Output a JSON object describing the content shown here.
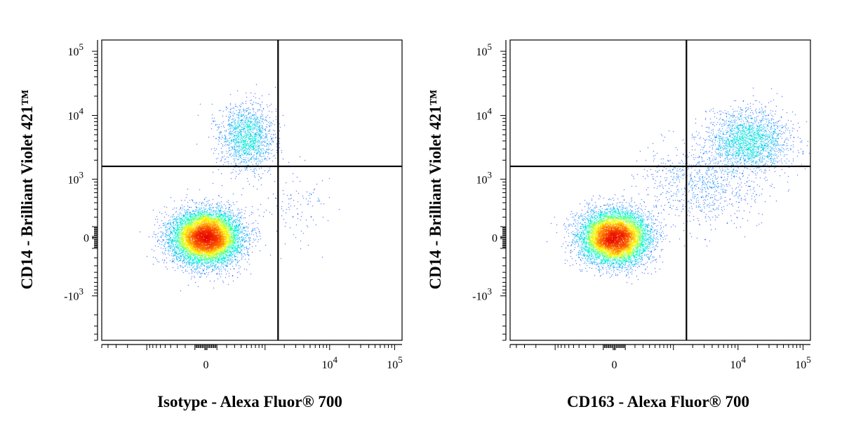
{
  "chart_data": [
    {
      "type": "scatter",
      "xlabel": "Isotype - Alexa Fluor® 700",
      "ylabel": "CD14 - Brilliant Violet 421™",
      "x_scale": "biexponential",
      "y_scale": "biexponential",
      "x_ticks": [
        {
          "value": 0,
          "base": "0",
          "exp": ""
        },
        {
          "value": 10000,
          "base": "10",
          "exp": "4"
        },
        {
          "value": 100000,
          "base": "10",
          "exp": "5"
        }
      ],
      "y_ticks": [
        {
          "value": 100000,
          "base": "10",
          "exp": "5"
        },
        {
          "value": 10000,
          "base": "10",
          "exp": "4"
        },
        {
          "value": 1000,
          "base": "10",
          "exp": "3"
        },
        {
          "value": 0,
          "base": "0",
          "exp": ""
        },
        {
          "value": -1000,
          "base": "-10",
          "exp": "3"
        }
      ],
      "gate": {
        "x": 1600,
        "y": 1600
      },
      "colors": [
        "#0000ff",
        "#00a0ff",
        "#00ffcc",
        "#ffff00",
        "#ff6600",
        "#e60000"
      ],
      "populations": [
        {
          "cx": 0,
          "cy": 0,
          "spread_x": 0.11,
          "spread_y": 0.085,
          "count": 11000,
          "density": "high"
        },
        {
          "cx": 500,
          "cy": 4500,
          "spread_x": 0.09,
          "spread_y": 0.11,
          "count": 1700,
          "density": "medium"
        },
        {
          "cx": 3000,
          "cy": 300,
          "spread_x": 0.12,
          "spread_y": 0.12,
          "count": 120,
          "density": "low"
        }
      ]
    },
    {
      "type": "scatter",
      "xlabel": "CD163 - Alexa Fluor® 700",
      "ylabel": "CD14 - Brilliant Violet 421™",
      "x_scale": "biexponential",
      "y_scale": "biexponential",
      "x_ticks": [
        {
          "value": 0,
          "base": "0",
          "exp": ""
        },
        {
          "value": 10000,
          "base": "10",
          "exp": "4"
        },
        {
          "value": 100000,
          "base": "10",
          "exp": "5"
        }
      ],
      "y_ticks": [
        {
          "value": 100000,
          "base": "10",
          "exp": "5"
        },
        {
          "value": 10000,
          "base": "10",
          "exp": "4"
        },
        {
          "value": 1000,
          "base": "10",
          "exp": "3"
        },
        {
          "value": 0,
          "base": "0",
          "exp": ""
        },
        {
          "value": -1000,
          "base": "-10",
          "exp": "3"
        }
      ],
      "gate": {
        "x": 1600,
        "y": 1600
      },
      "colors": [
        "#0000ff",
        "#00a0ff",
        "#00ffcc",
        "#ffff00",
        "#ff6600",
        "#e60000"
      ],
      "populations": [
        {
          "cx": 0,
          "cy": 0,
          "spread_x": 0.11,
          "spread_y": 0.085,
          "count": 10000,
          "density": "high"
        },
        {
          "cx": 15000,
          "cy": 4000,
          "spread_x": 0.13,
          "spread_y": 0.1,
          "count": 2200,
          "density": "medium"
        },
        {
          "cx": 3000,
          "cy": 800,
          "spread_x": 0.2,
          "spread_y": 0.14,
          "count": 900,
          "density": "low"
        }
      ]
    }
  ]
}
